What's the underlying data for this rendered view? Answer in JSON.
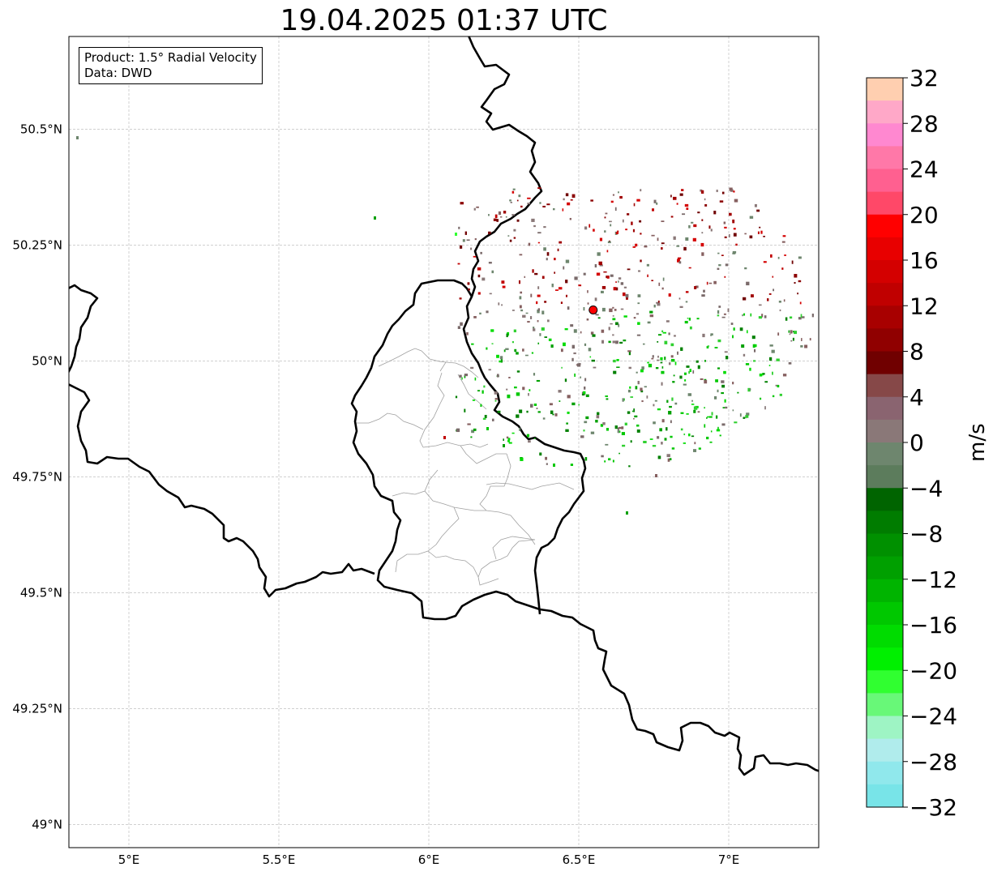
{
  "title": "19.04.2025 01:37 UTC",
  "info_box": {
    "product": "Product: 1.5° Radial Velocity",
    "data": "Data: DWD"
  },
  "map": {
    "lon_range": [
      4.8,
      7.3
    ],
    "lat_range": [
      48.95,
      50.7
    ],
    "lon_ticks": [
      {
        "value": 5.0,
        "label": "5°E"
      },
      {
        "value": 5.5,
        "label": "5.5°E"
      },
      {
        "value": 6.0,
        "label": "6°E"
      },
      {
        "value": 6.5,
        "label": "6.5°E"
      },
      {
        "value": 7.0,
        "label": "7°E"
      }
    ],
    "lat_ticks": [
      {
        "value": 49.0,
        "label": "49°N"
      },
      {
        "value": 49.25,
        "label": "49.25°N"
      },
      {
        "value": 49.5,
        "label": "49.5°N"
      },
      {
        "value": 49.75,
        "label": "49.75°N"
      },
      {
        "value": 50.0,
        "label": "50°N"
      },
      {
        "value": 50.25,
        "label": "50.25°N"
      },
      {
        "value": 50.5,
        "label": "50.5°N"
      }
    ],
    "grid": true,
    "radar_site": {
      "lon": 6.548,
      "lat": 50.11,
      "color": "#ff0000"
    },
    "border_color": "#000000",
    "district_color": "#a0a0a0"
  },
  "colorbar": {
    "unit": "m/s",
    "range": [
      -32,
      32
    ],
    "step": 2,
    "ticks": [
      {
        "value": 32,
        "label": "32"
      },
      {
        "value": 28,
        "label": "28"
      },
      {
        "value": 24,
        "label": "24"
      },
      {
        "value": 20,
        "label": "20"
      },
      {
        "value": 16,
        "label": "16"
      },
      {
        "value": 12,
        "label": "12"
      },
      {
        "value": 8,
        "label": "8"
      },
      {
        "value": 4,
        "label": "4"
      },
      {
        "value": 0,
        "label": "0"
      },
      {
        "value": -4,
        "label": "−4"
      },
      {
        "value": -8,
        "label": "−8"
      },
      {
        "value": -12,
        "label": "−12"
      },
      {
        "value": -16,
        "label": "−16"
      },
      {
        "value": -20,
        "label": "−20"
      },
      {
        "value": -24,
        "label": "−24"
      },
      {
        "value": -28,
        "label": "−28"
      },
      {
        "value": -32,
        "label": "−32"
      }
    ],
    "colors_top_to_bottom": [
      "#ffcfb0",
      "#ffa8c8",
      "#ff88d0",
      "#ff78a8",
      "#ff6090",
      "#ff4868",
      "#ff0000",
      "#e80000",
      "#d40000",
      "#c00000",
      "#a80000",
      "#900000",
      "#700000",
      "#864848",
      "#8a6470",
      "#8a7878",
      "#6e866e",
      "#5c7c5c",
      "#006400",
      "#007c00",
      "#009000",
      "#00a000",
      "#00b400",
      "#00c800",
      "#00dc00",
      "#00f000",
      "#30ff30",
      "#68f878",
      "#9ef4c4",
      "#b0ecec",
      "#90e8ec",
      "#78e4e8"
    ]
  }
}
